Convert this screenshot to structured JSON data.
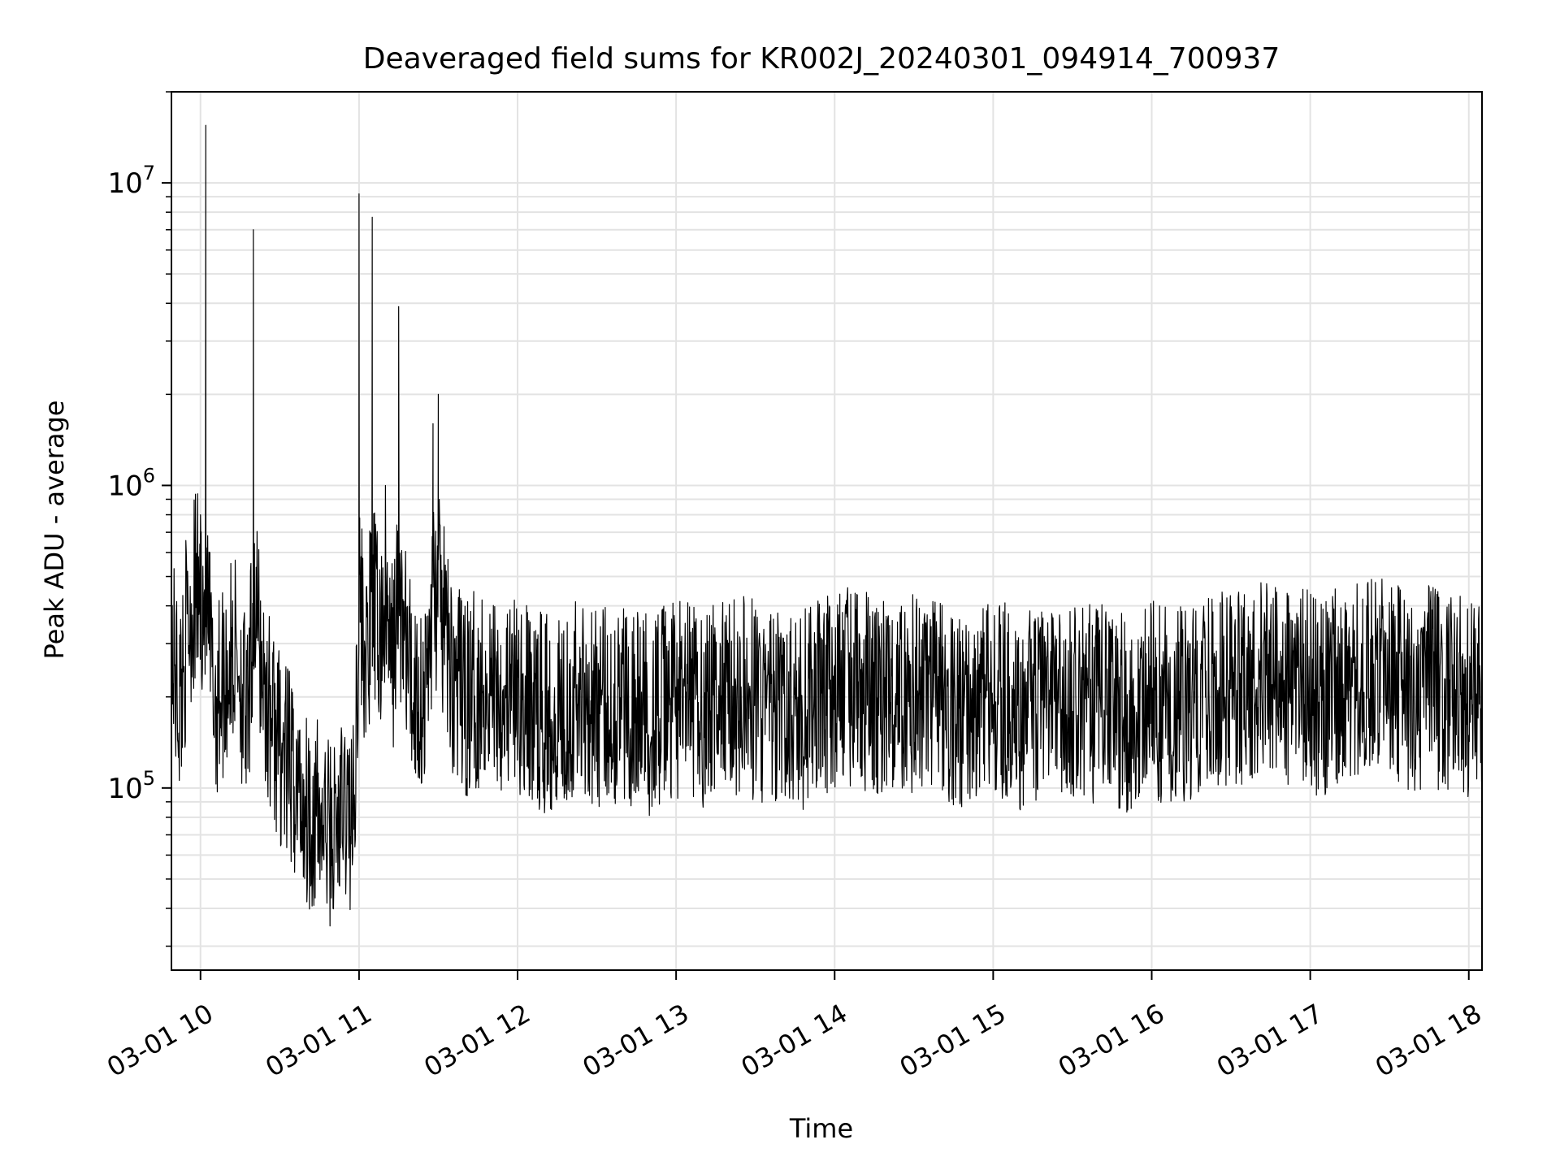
{
  "chart_data": {
    "type": "line",
    "title": "Deaveraged field sums for KR002J_20240301_094914_700937",
    "xlabel": "Time",
    "ylabel": "Peak ADU - average",
    "xaxis_type": "datetime",
    "yscale": "log",
    "grid": true,
    "legend": "none",
    "line_color": "#000000",
    "xlim": [
      "2024-03-01 09:49",
      "2024-03-01 18:05"
    ],
    "ylim": [
      25000,
      20000000
    ],
    "x_ticks": [
      {
        "value": "2024-03-01 10:00",
        "label": "03-01 10"
      },
      {
        "value": "2024-03-01 11:00",
        "label": "03-01 11"
      },
      {
        "value": "2024-03-01 12:00",
        "label": "03-01 12"
      },
      {
        "value": "2024-03-01 13:00",
        "label": "03-01 13"
      },
      {
        "value": "2024-03-01 14:00",
        "label": "03-01 14"
      },
      {
        "value": "2024-03-01 15:00",
        "label": "03-01 15"
      },
      {
        "value": "2024-03-01 16:00",
        "label": "03-01 16"
      },
      {
        "value": "2024-03-01 17:00",
        "label": "03-01 17"
      },
      {
        "value": "2024-03-01 18:00",
        "label": "03-01 18"
      }
    ],
    "y_ticks": [
      {
        "value": 100000,
        "base": "10",
        "exp": "5"
      },
      {
        "value": 1000000,
        "base": "10",
        "exp": "6"
      },
      {
        "value": 10000000,
        "base": "10",
        "exp": "7"
      }
    ],
    "series": [
      {
        "x": [
          "2024-03-01 09:49",
          "2024-03-01 09:52",
          "2024-03-01 09:55",
          "2024-03-01 09:58",
          "2024-03-01 10:00",
          "2024-03-01 10:02",
          "2024-03-01 10:05",
          "2024-03-01 10:10",
          "2024-03-01 10:14",
          "2024-03-01 10:18",
          "2024-03-01 10:20",
          "2024-03-01 10:25",
          "2024-03-01 10:30",
          "2024-03-01 10:35",
          "2024-03-01 10:40",
          "2024-03-01 10:45",
          "2024-03-01 10:50",
          "2024-03-01 10:55",
          "2024-03-01 10:58",
          "2024-03-01 11:00",
          "2024-03-01 11:03",
          "2024-03-01 11:05",
          "2024-03-01 11:08",
          "2024-03-01 11:10",
          "2024-03-01 11:12",
          "2024-03-01 11:15",
          "2024-03-01 11:20",
          "2024-03-01 11:25",
          "2024-03-01 11:28",
          "2024-03-01 11:30",
          "2024-03-01 11:35",
          "2024-03-01 11:40",
          "2024-03-01 11:45",
          "2024-03-01 11:50",
          "2024-03-01 12:00",
          "2024-03-01 12:10",
          "2024-03-01 12:18",
          "2024-03-01 12:25",
          "2024-03-01 12:30",
          "2024-03-01 12:40",
          "2024-03-01 12:50",
          "2024-03-01 13:00",
          "2024-03-01 13:10",
          "2024-03-01 13:20",
          "2024-03-01 13:30",
          "2024-03-01 13:40",
          "2024-03-01 13:50",
          "2024-03-01 13:55",
          "2024-03-01 14:00",
          "2024-03-01 14:04",
          "2024-03-01 14:08",
          "2024-03-01 14:15",
          "2024-03-01 14:20",
          "2024-03-01 14:30",
          "2024-03-01 14:40",
          "2024-03-01 14:50",
          "2024-03-01 15:00",
          "2024-03-01 15:10",
          "2024-03-01 15:20",
          "2024-03-01 15:30",
          "2024-03-01 15:40",
          "2024-03-01 15:50",
          "2024-03-01 16:00",
          "2024-03-01 16:10",
          "2024-03-01 16:20",
          "2024-03-01 16:30",
          "2024-03-01 16:40",
          "2024-03-01 16:45",
          "2024-03-01 16:50",
          "2024-03-01 17:00",
          "2024-03-01 17:05",
          "2024-03-01 17:10",
          "2024-03-01 17:15",
          "2024-03-01 17:20",
          "2024-03-01 17:30",
          "2024-03-01 17:35",
          "2024-03-01 17:40",
          "2024-03-01 17:45",
          "2024-03-01 17:50",
          "2024-03-01 17:55",
          "2024-03-01 18:00",
          "2024-03-01 18:03",
          "2024-03-01 18:05"
        ],
        "y": [
          300000,
          200000,
          350000,
          500000,
          800000,
          15500000,
          200000,
          250000,
          300000,
          150000,
          7000000,
          200000,
          140000,
          110000,
          90000,
          80000,
          70000,
          90000,
          80000,
          9200000,
          250000,
          7700000,
          300000,
          1000000,
          250000,
          3900000,
          220000,
          200000,
          1600000,
          2000000,
          250000,
          200000,
          220000,
          230000,
          200000,
          180000,
          200000,
          210000,
          190000,
          200000,
          180000,
          200000,
          190000,
          210000,
          200000,
          180000,
          190000,
          220000,
          200000,
          230000,
          220000,
          210000,
          200000,
          210000,
          200000,
          190000,
          210000,
          180000,
          200000,
          190000,
          200000,
          180000,
          200000,
          190000,
          210000,
          220000,
          230000,
          250000,
          210000,
          220000,
          200000,
          230000,
          220000,
          250000,
          240000,
          220000,
          200000,
          230000,
          210000,
          220000,
          200000,
          220000,
          200000
        ],
        "noise_band": [
          0.45,
          2.1
        ]
      }
    ]
  }
}
